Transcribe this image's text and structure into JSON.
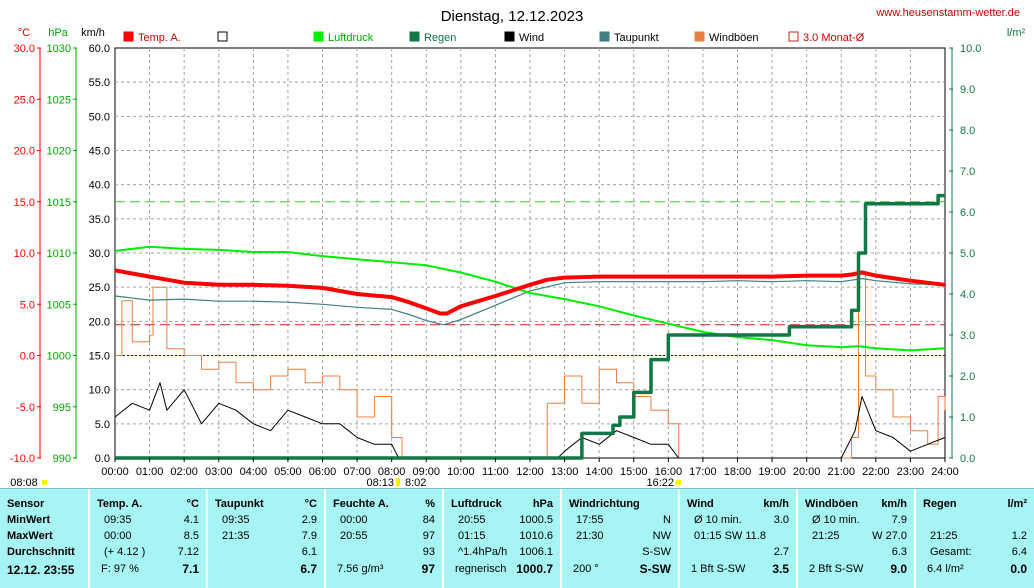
{
  "header": {
    "title": "Dienstag, 12.12.2023",
    "website": "www.heusenstamm-wetter.de"
  },
  "axis_units": {
    "temp": "°C",
    "press": "hPa",
    "wind": "km/h",
    "rain": "l/m²"
  },
  "axis_ticks": {
    "temp": [
      "30.0",
      "25.0",
      "20.0",
      "15.0",
      "10.0",
      "5.0",
      "0.0",
      "-5.0",
      "-10.0"
    ],
    "press": [
      "1030",
      "1025",
      "1020",
      "1015",
      "1010",
      "1005",
      "1000",
      "995",
      "990"
    ],
    "wind": [
      "60.0",
      "55.0",
      "50.0",
      "45.0",
      "40.0",
      "35.0",
      "30.0",
      "25.0",
      "20.0",
      "15.0",
      "10.0",
      "5.0",
      "0.0"
    ],
    "rain": [
      "10.0",
      "9.0",
      "8.0",
      "7.0",
      "6.0",
      "5.0",
      "4.0",
      "3.0",
      "2.0",
      "1.0",
      "0.0"
    ]
  },
  "legend": [
    {
      "label": "Temp. A.",
      "color": "#ff0000",
      "fill": true
    },
    {
      "label": "",
      "color": "#000000",
      "fill": false
    },
    {
      "label": "Luftdruck",
      "color": "#00ee00",
      "fill": true
    },
    {
      "label": "Regen",
      "color": "#117744",
      "fill": true
    },
    {
      "label": "Wind",
      "color": "#000000",
      "fill": true
    },
    {
      "label": "Taupunkt",
      "color": "#3f7f7f",
      "fill": true
    },
    {
      "label": "Windböen",
      "color": "#e88040",
      "fill": true
    },
    {
      "label": "3.0 Monat-Ø",
      "color": "#cc2222",
      "fill": false
    }
  ],
  "time_marks": {
    "left": "08:08",
    "mid_a": "08:13",
    "mid_b": "8:02",
    "right": "16:22"
  },
  "colors": {
    "temp": "#ff0000",
    "press": "#00ee00",
    "rain": "#117744",
    "wind": "#000000",
    "dew": "#3f7f7f",
    "gust": "#e88040",
    "monthavg": "#cc2222",
    "grid": "#a0a0a0",
    "ref15": "#33cc33",
    "zero": "#0000cc"
  },
  "chart_data": {
    "type": "line",
    "title": "Dienstag, 12.12.2023",
    "x_ticks": [
      "00:00",
      "01:00",
      "02:00",
      "03:00",
      "04:00",
      "05:00",
      "06:00",
      "07:00",
      "08:00",
      "09:00",
      "10:00",
      "11:00",
      "12:00",
      "13:00",
      "14:00",
      "15:00",
      "16:00",
      "17:00",
      "18:00",
      "19:00",
      "20:00",
      "21:00",
      "22:00",
      "23:00",
      "24:00"
    ],
    "x_range": [
      0,
      24
    ],
    "axes": {
      "temp_c": [
        -10,
        30
      ],
      "pressure_hpa": [
        990,
        1030
      ],
      "wind_kmh": [
        0,
        60
      ],
      "rain_lm2": [
        0,
        10
      ]
    },
    "reference_lines": {
      "temp_zero_c": 0.0,
      "month_avg_temp_c": 3.0,
      "temp_15_c": 15.0
    },
    "series": [
      {
        "name": "Temp. A.",
        "axis": "temp_c",
        "x": [
          0,
          1,
          2,
          3,
          4,
          5,
          6,
          7,
          8,
          8.5,
          9,
          9.4,
          9.6,
          10,
          11,
          12,
          12.5,
          13,
          14,
          15,
          16,
          17,
          18,
          19,
          20,
          21,
          21.3,
          21.6,
          22,
          23,
          24
        ],
        "y": [
          8.3,
          7.7,
          7.1,
          6.9,
          6.9,
          6.8,
          6.6,
          6.0,
          5.7,
          5.2,
          4.6,
          4.1,
          4.1,
          4.8,
          5.8,
          6.9,
          7.4,
          7.6,
          7.7,
          7.7,
          7.7,
          7.7,
          7.7,
          7.7,
          7.8,
          7.8,
          7.9,
          8.1,
          7.8,
          7.3,
          6.9
        ]
      },
      {
        "name": "Luftdruck",
        "axis": "pressure_hpa",
        "x": [
          0,
          1,
          2,
          3,
          4,
          5,
          6,
          7,
          8,
          9,
          10,
          11,
          12,
          13,
          14,
          15,
          16,
          17,
          18,
          19,
          20,
          21,
          21.5,
          22,
          23,
          24
        ],
        "y": [
          1010.2,
          1010.6,
          1010.4,
          1010.3,
          1010.1,
          1010.1,
          1009.7,
          1009.4,
          1009.1,
          1008.8,
          1008.1,
          1007.2,
          1006.1,
          1005.5,
          1004.8,
          1003.9,
          1003.1,
          1002.3,
          1001.8,
          1001.5,
          1001.0,
          1000.8,
          1000.9,
          1000.7,
          1000.5,
          1000.7
        ]
      },
      {
        "name": "Taupunkt",
        "axis": "temp_c",
        "x": [
          0,
          1,
          2,
          3,
          4,
          5,
          6,
          7,
          8,
          8.5,
          9,
          9.5,
          10,
          11,
          12,
          13,
          14,
          15,
          16,
          17,
          18,
          19,
          20,
          21,
          21.6,
          22,
          23,
          24
        ],
        "y": [
          5.8,
          5.4,
          5.5,
          5.3,
          5.3,
          5.2,
          5.0,
          4.7,
          4.5,
          4.0,
          3.4,
          3.0,
          3.5,
          4.9,
          6.3,
          7.1,
          7.2,
          7.2,
          7.2,
          7.2,
          7.3,
          7.2,
          7.3,
          7.2,
          7.5,
          7.3,
          7.0,
          6.9
        ]
      },
      {
        "name": "Regen",
        "axis": "rain_lm2",
        "x": [
          0,
          13,
          13.5,
          14,
          14.4,
          14.6,
          15,
          15.5,
          16,
          16.5,
          17,
          18,
          19,
          19.5,
          20,
          21,
          21.3,
          21.5,
          21.7,
          21.9,
          22,
          23,
          23.7,
          23.8,
          24
        ],
        "y": [
          0,
          0,
          0.6,
          0.6,
          0.8,
          1.0,
          1.6,
          2.4,
          3.0,
          3.0,
          3.0,
          3.0,
          3.0,
          3.2,
          3.2,
          3.2,
          3.6,
          5.0,
          6.2,
          6.2,
          6.2,
          6.2,
          6.2,
          6.4,
          6.4
        ]
      },
      {
        "name": "Wind",
        "axis": "wind_kmh",
        "x": [
          0,
          0.5,
          1,
          1.3,
          1.5,
          2,
          2.5,
          3,
          3.5,
          4,
          4.5,
          5,
          5.5,
          6,
          6.5,
          7,
          7.5,
          8,
          8.2,
          9,
          10,
          11,
          12,
          12.8,
          13,
          13.5,
          14,
          14.5,
          15,
          15.5,
          16,
          16.3,
          17,
          20,
          21,
          21.4,
          21.6,
          22,
          22.5,
          23,
          23.5,
          24
        ],
        "y": [
          6,
          8,
          7,
          11,
          7,
          10,
          5,
          8,
          7,
          5,
          4,
          7,
          6,
          5,
          5,
          3,
          2,
          2,
          0,
          0,
          0,
          0,
          0,
          0,
          1,
          3,
          2,
          4,
          3,
          2,
          2,
          0,
          0,
          0,
          0,
          4,
          9,
          4,
          3,
          1,
          2,
          3
        ]
      },
      {
        "name": "Windböen",
        "axis": "wind_kmh",
        "x": [
          0,
          0.2,
          0.5,
          1,
          1.1,
          1.5,
          2,
          2.5,
          3,
          3.5,
          4,
          4.5,
          5,
          5.5,
          6,
          6.5,
          7,
          7.5,
          8,
          8.3,
          9,
          10,
          11,
          12,
          12.5,
          13,
          13.5,
          14,
          14.5,
          15,
          15.5,
          16,
          16.3,
          17,
          20,
          21,
          21.3,
          21.5,
          21.7,
          22,
          22.5,
          23,
          23.5,
          23.8,
          24
        ],
        "y": [
          15,
          23,
          17,
          18,
          25,
          16,
          15,
          13,
          14,
          11,
          10,
          12,
          13,
          11,
          12,
          10,
          6,
          9,
          3,
          0,
          0,
          0,
          0,
          0,
          8,
          12,
          8,
          13,
          11,
          9,
          7,
          5,
          0,
          0,
          0,
          0,
          3,
          27,
          12,
          10,
          6,
          4,
          2,
          9,
          7
        ]
      }
    ]
  },
  "stats": {
    "columns": [
      {
        "head": "Sensor",
        "unit": "",
        "rows": [
          {
            "l": "MinWert",
            "v": ""
          },
          {
            "l": "MaxWert",
            "v": ""
          },
          {
            "l": "Durchschnitt",
            "v": ""
          }
        ],
        "foot_l": "12.12. 23:55",
        "foot_v": ""
      },
      {
        "head": "Temp. A.",
        "unit": "°C",
        "rows": [
          {
            "l": "09:35",
            "v": "4.1"
          },
          {
            "l": "00:00",
            "v": "8.5"
          },
          {
            "l": "(+ 4.12 )",
            "v": "7.12"
          }
        ],
        "foot_l": "F: 97 %",
        "foot_v": "7.1"
      },
      {
        "head": "Taupunkt",
        "unit": "°C",
        "rows": [
          {
            "l": "09:35",
            "v": "2.9"
          },
          {
            "l": "21:35",
            "v": "7.9"
          },
          {
            "l": "",
            "v": "6.1"
          }
        ],
        "foot_l": "",
        "foot_v": "6.7"
      },
      {
        "head": "Feuchte A.",
        "unit": "%",
        "rows": [
          {
            "l": "00:00",
            "v": "84"
          },
          {
            "l": "20:55",
            "v": "97"
          },
          {
            "l": "",
            "v": "93"
          }
        ],
        "foot_l": "7.56 g/m³",
        "foot_v": "97"
      },
      {
        "head": "Luftdruck",
        "unit": "hPa",
        "rows": [
          {
            "l": "20:55",
            "v": "1000.5"
          },
          {
            "l": "01:15",
            "v": "1010.6"
          },
          {
            "l": "^1.4hPa/h",
            "v": "1006.1"
          }
        ],
        "foot_l": "regnerisch",
        "foot_v": "1000.7"
      },
      {
        "head": "Windrichtung",
        "unit": "",
        "rows": [
          {
            "l": "17:55",
            "v": "N"
          },
          {
            "l": "21:30",
            "v": "NW"
          },
          {
            "l": "",
            "v": "S-SW"
          }
        ],
        "foot_l": "200 °",
        "foot_v": "S-SW"
      },
      {
        "head": "Wind",
        "unit": "km/h",
        "rows": [
          {
            "l": "Ø 10 min.",
            "v": "3.0"
          },
          {
            "l": "01:15     SW 11.8",
            "v": ""
          },
          {
            "l": "",
            "v": "2.7"
          }
        ],
        "foot_l": "1 Bft S-SW",
        "foot_v": "3.5"
      },
      {
        "head": "Windböen",
        "unit": "km/h",
        "rows": [
          {
            "l": "Ø 10 min.",
            "v": "7.9"
          },
          {
            "l": "21:25",
            "v": "W 27.0"
          },
          {
            "l": "",
            "v": "6.3"
          }
        ],
        "foot_l": "2 Bft S-SW",
        "foot_v": "9.0"
      },
      {
        "head": "Regen",
        "unit": "l/m²",
        "rows": [
          {
            "l": "",
            "v": ""
          },
          {
            "l": "21:25",
            "v": "1.2"
          },
          {
            "l": "Gesamt:",
            "v": "6.4"
          }
        ],
        "foot_l": "6.4 l/m²",
        "foot_v": "0.0"
      }
    ]
  }
}
